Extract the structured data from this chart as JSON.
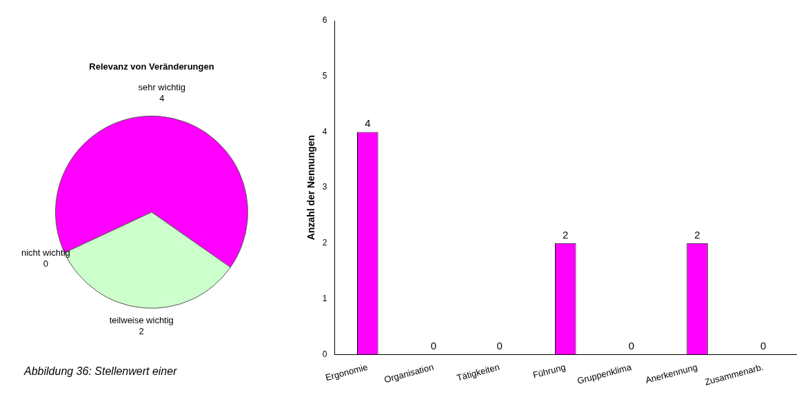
{
  "chart_data": [
    {
      "type": "pie",
      "title": "Relevanz von Veränderungen",
      "categories": [
        "sehr wichtig",
        "teilweise wichtig",
        "nicht wichtig"
      ],
      "values": [
        4,
        2,
        0
      ],
      "value_labels": [
        "4",
        "2",
        "0"
      ],
      "colors": [
        "#ff00ff",
        "#ccffcc",
        "#669966"
      ],
      "legend": false,
      "annotations": [
        "Abbildung 36: Stellenwert einer"
      ]
    },
    {
      "type": "bar",
      "categories": [
        "Ergonomie",
        "Organisation",
        "Tätigkeiten",
        "Führung",
        "Gruppenklima",
        "Anerkennung",
        "Zusammenarb."
      ],
      "values": [
        4,
        0,
        0,
        2,
        0,
        2,
        0
      ],
      "color": "#ff00ff",
      "ylabel": "Anzahl der Nennungen",
      "ylim": [
        0,
        6
      ],
      "yticks": [
        0,
        1,
        2,
        3,
        4,
        5,
        6
      ],
      "grid": false,
      "legend": false,
      "data_labels": true
    }
  ]
}
